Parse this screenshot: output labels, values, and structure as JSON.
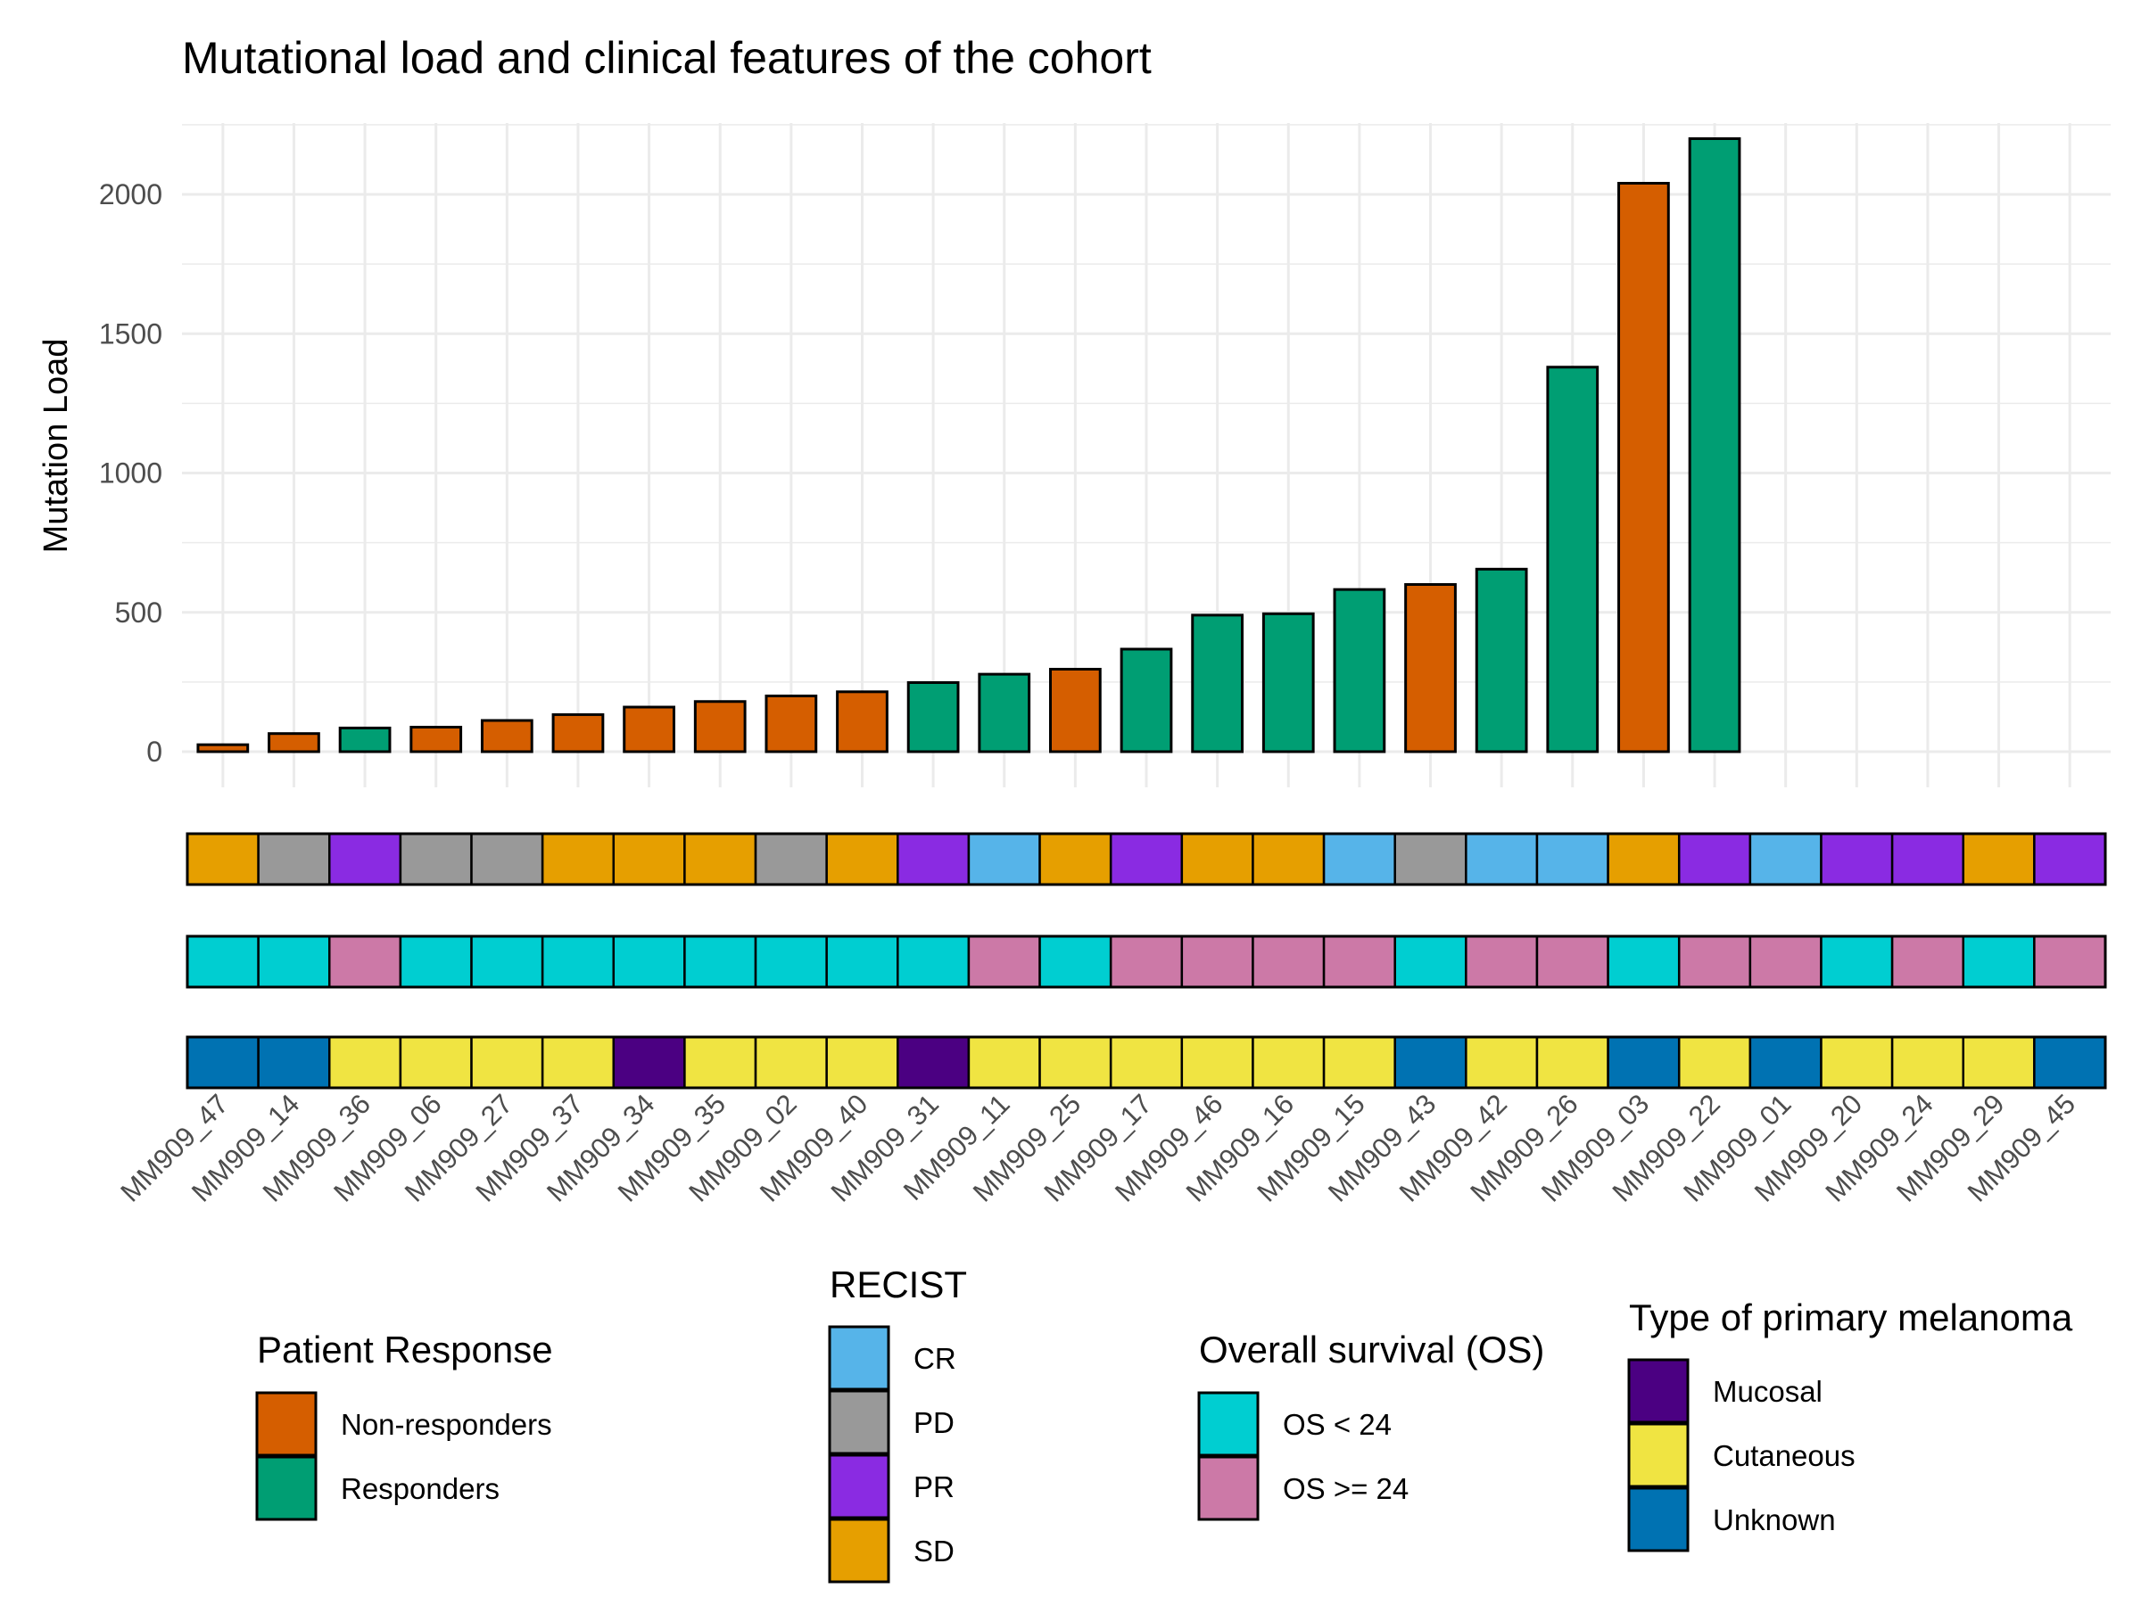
{
  "chart_data": {
    "type": "bar",
    "title": "Mutational load and clinical features of the cohort",
    "ylabel": "Mutation Load",
    "xlabel": "",
    "ylim": [
      0,
      2250
    ],
    "yticks": [
      0,
      500,
      1000,
      1500,
      2000
    ],
    "grid": true,
    "categories": [
      "MM909_47",
      "MM909_14",
      "MM909_36",
      "MM909_06",
      "MM909_27",
      "MM909_37",
      "MM909_34",
      "MM909_35",
      "MM909_02",
      "MM909_40",
      "MM909_31",
      "MM909_11",
      "MM909_25",
      "MM909_17",
      "MM909_46",
      "MM909_16",
      "MM909_15",
      "MM909_43",
      "MM909_42",
      "MM909_26",
      "MM909_03",
      "MM909_22",
      "MM909_01",
      "MM909_20",
      "MM909_24",
      "MM909_29",
      "MM909_45"
    ],
    "series": [
      {
        "name": "Mutation Load",
        "values": [
          25,
          65,
          85,
          88,
          112,
          133,
          160,
          180,
          200,
          215,
          248,
          278,
          296,
          368,
          490,
          495,
          582,
          600,
          655,
          1380,
          2040,
          2200,
          null,
          null,
          null,
          null,
          null
        ],
        "response": [
          "Non-responders",
          "Non-responders",
          "Responders",
          "Non-responders",
          "Non-responders",
          "Non-responders",
          "Non-responders",
          "Non-responders",
          "Non-responders",
          "Non-responders",
          "Responders",
          "Responders",
          "Non-responders",
          "Responders",
          "Responders",
          "Responders",
          "Responders",
          "Non-responders",
          "Responders",
          "Responders",
          "Non-responders",
          "Responders",
          null,
          null,
          null,
          null,
          null
        ]
      }
    ],
    "annotation_tracks": [
      {
        "name": "RECIST",
        "values": [
          "SD",
          "PD",
          "PR",
          "PD",
          "PD",
          "SD",
          "SD",
          "SD",
          "PD",
          "SD",
          "PR",
          "CR",
          "SD",
          "PR",
          "SD",
          "SD",
          "CR",
          "PD",
          "CR",
          "CR",
          "SD",
          "PR",
          "CR",
          "PR",
          "PR",
          "SD",
          "PR"
        ]
      },
      {
        "name": "Overall survival (OS)",
        "values": [
          "OS < 24",
          "OS < 24",
          "OS >= 24",
          "OS < 24",
          "OS < 24",
          "OS < 24",
          "OS < 24",
          "OS < 24",
          "OS < 24",
          "OS < 24",
          "OS < 24",
          "OS >= 24",
          "OS < 24",
          "OS >= 24",
          "OS >= 24",
          "OS >= 24",
          "OS >= 24",
          "OS < 24",
          "OS >= 24",
          "OS >= 24",
          "OS < 24",
          "OS >= 24",
          "OS >= 24",
          "OS < 24",
          "OS >= 24",
          "OS < 24",
          "OS >= 24"
        ]
      },
      {
        "name": "Type of primary melanoma",
        "values": [
          "Unknown",
          "Unknown",
          "Cutaneous",
          "Cutaneous",
          "Cutaneous",
          "Cutaneous",
          "Mucosal",
          "Cutaneous",
          "Cutaneous",
          "Cutaneous",
          "Mucosal",
          "Cutaneous",
          "Cutaneous",
          "Cutaneous",
          "Cutaneous",
          "Cutaneous",
          "Cutaneous",
          "Unknown",
          "Cutaneous",
          "Cutaneous",
          "Unknown",
          "Cutaneous",
          "Unknown",
          "Cutaneous",
          "Cutaneous",
          "Cutaneous",
          "Unknown"
        ]
      }
    ],
    "legends": [
      {
        "title": "Patient Response",
        "entries": [
          {
            "label": "Non-responders",
            "color": "#d55e00"
          },
          {
            "label": "Responders",
            "color": "#009e73"
          }
        ]
      },
      {
        "title": "RECIST",
        "entries": [
          {
            "label": "CR",
            "color": "#56b4e9"
          },
          {
            "label": "PD",
            "color": "#999999"
          },
          {
            "label": "PR",
            "color": "#8a2be2"
          },
          {
            "label": "SD",
            "color": "#e69f00"
          }
        ]
      },
      {
        "title": "Overall survival (OS)",
        "entries": [
          {
            "label": "OS < 24",
            "color": "#00ced1"
          },
          {
            "label": "OS >= 24",
            "color": "#cc79a7"
          }
        ]
      },
      {
        "title": "Type of primary melanoma",
        "entries": [
          {
            "label": "Mucosal",
            "color": "#4b0082"
          },
          {
            "label": "Cutaneous",
            "color": "#f0e442"
          },
          {
            "label": "Unknown",
            "color": "#0072b2"
          }
        ]
      }
    ]
  },
  "colors": {
    "Non-responders": "#d55e00",
    "Responders": "#009e73",
    "CR": "#56b4e9",
    "PD": "#999999",
    "PR": "#8a2be2",
    "SD": "#e69f00",
    "OS < 24": "#00ced1",
    "OS >= 24": "#cc79a7",
    "Mucosal": "#4b0082",
    "Cutaneous": "#f0e442",
    "Unknown": "#0072b2",
    "grid": "#ebebeb",
    "outline": "#000000"
  }
}
